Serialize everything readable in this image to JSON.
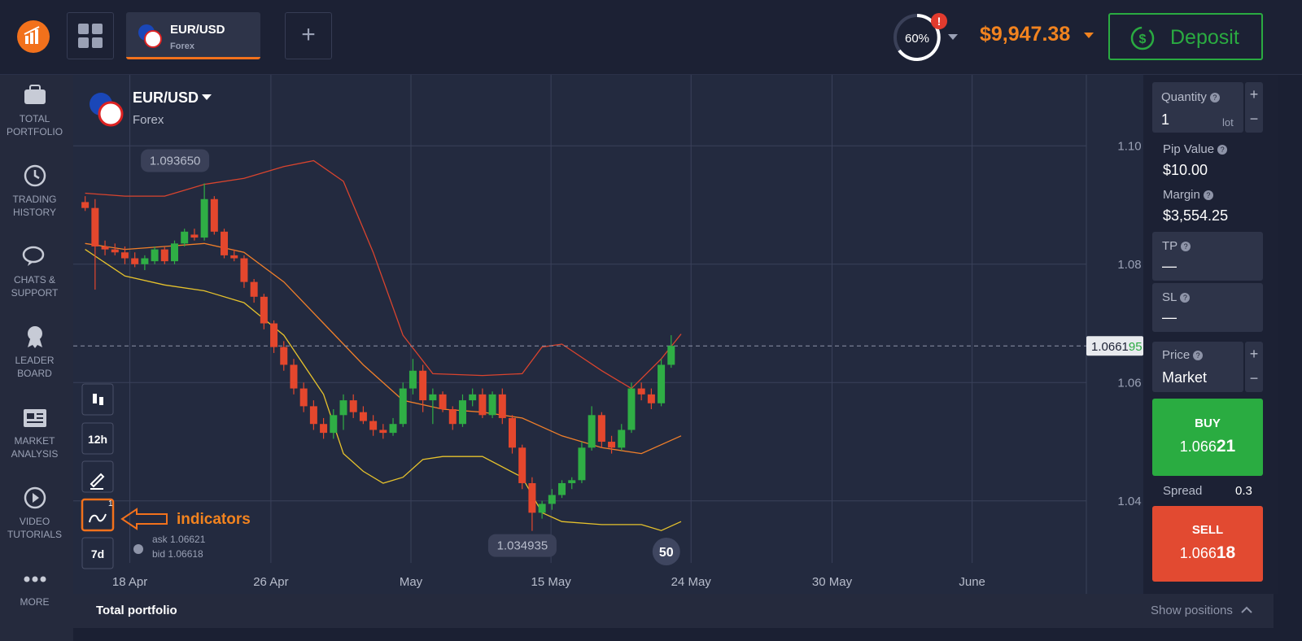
{
  "header": {
    "tab": {
      "symbol": "EUR/USD",
      "market": "Forex"
    },
    "progress": "60%",
    "balance": "$9,947.38",
    "deposit": "Deposit"
  },
  "sidebar": {
    "items": [
      "TOTAL PORTFOLIO",
      "TRADING HISTORY",
      "CHATS & SUPPORT",
      "LEADER BOARD",
      "MARKET ANALYSIS",
      "VIDEO TUTORIALS",
      "MORE"
    ]
  },
  "chart_data": {
    "type": "candlestick",
    "symbol": "EUR/USD",
    "market": "Forex",
    "open": [
      1.0905,
      1.0895,
      1.083,
      1.0825,
      1.082,
      1.081,
      1.08,
      1.0805,
      1.0825,
      1.0805,
      1.0835,
      1.085,
      1.0845,
      1.091,
      1.0855,
      1.0815,
      1.081,
      1.077,
      1.0745,
      1.07,
      1.066,
      1.063,
      1.059,
      1.056,
      1.053,
      1.0515,
      1.0545,
      1.057,
      1.055,
      1.0535,
      1.052,
      1.0515,
      1.053,
      1.059,
      1.062,
      1.057,
      1.058,
      1.0555,
      1.053,
      1.057,
      1.058,
      1.0545,
      1.058,
      1.054,
      1.049,
      1.043,
      1.038,
      1.0395,
      1.041,
      1.043,
      1.0435,
      1.049,
      1.0545,
      1.05,
      1.049,
      1.052,
      1.059,
      1.058,
      1.0565,
      1.063
    ],
    "high": [
      1.0915,
      1.091,
      1.084,
      1.0835,
      1.083,
      1.082,
      1.0815,
      1.083,
      1.083,
      1.084,
      1.086,
      1.086,
      1.09365,
      1.0915,
      1.086,
      1.0825,
      1.0815,
      1.0775,
      1.075,
      1.0705,
      1.067,
      1.064,
      1.06,
      1.057,
      1.054,
      1.0555,
      1.058,
      1.058,
      1.056,
      1.0545,
      1.053,
      1.054,
      1.06,
      1.064,
      1.063,
      1.059,
      1.0585,
      1.056,
      1.058,
      1.059,
      1.059,
      1.0585,
      1.059,
      1.0545,
      1.0495,
      1.044,
      1.04,
      1.042,
      1.0435,
      1.044,
      1.05,
      1.056,
      1.055,
      1.051,
      1.053,
      1.06,
      1.06,
      1.059,
      1.064,
      1.068
    ],
    "low": [
      1.089,
      1.0757,
      1.0815,
      1.0815,
      1.08,
      1.0795,
      1.079,
      1.08,
      1.08,
      1.08,
      1.083,
      1.084,
      1.084,
      1.085,
      1.081,
      1.0805,
      1.076,
      1.0735,
      1.069,
      1.065,
      1.062,
      1.058,
      1.055,
      1.052,
      1.0505,
      1.0505,
      1.052,
      1.054,
      1.053,
      1.051,
      1.0505,
      1.051,
      1.0525,
      1.058,
      1.055,
      1.053,
      1.055,
      1.052,
      1.0525,
      1.056,
      1.054,
      1.054,
      1.053,
      1.048,
      1.042,
      1.034935,
      1.037,
      1.0385,
      1.0405,
      1.042,
      1.043,
      1.0485,
      1.049,
      1.048,
      1.0485,
      1.0515,
      1.057,
      1.0555,
      1.056,
      1.0625
    ],
    "close": [
      1.0895,
      1.083,
      1.0825,
      1.082,
      1.081,
      1.08,
      1.081,
      1.0825,
      1.0805,
      1.0835,
      1.0855,
      1.0845,
      1.091,
      1.0855,
      1.0815,
      1.081,
      1.077,
      1.0745,
      1.07,
      1.066,
      1.063,
      1.059,
      1.056,
      1.053,
      1.0515,
      1.0545,
      1.057,
      1.055,
      1.0535,
      1.052,
      1.0515,
      1.053,
      1.059,
      1.062,
      1.057,
      1.058,
      1.0555,
      1.053,
      1.057,
      1.058,
      1.0545,
      1.058,
      1.054,
      1.049,
      1.043,
      1.038,
      1.0395,
      1.041,
      1.043,
      1.0435,
      1.049,
      1.0545,
      1.05,
      1.049,
      1.052,
      1.059,
      1.058,
      1.0565,
      1.063,
      1.0662
    ],
    "up_color": "#2fae45",
    "down_color": "#e4472d",
    "lines": [
      {
        "color": "#d9442e",
        "x": [
          0,
          4,
          8,
          12,
          16,
          20,
          23,
          26,
          29,
          32,
          35,
          40,
          44,
          46,
          48,
          52,
          55,
          58,
          60
        ],
        "values": [
          1.092,
          1.0915,
          1.0915,
          1.0935,
          1.0945,
          1.0965,
          1.0975,
          1.094,
          1.082,
          1.068,
          1.0615,
          1.0612,
          1.0615,
          1.066,
          1.0665,
          1.062,
          1.059,
          1.064,
          1.0682
        ]
      },
      {
        "color": "#f07f2a",
        "x": [
          0,
          4,
          8,
          12,
          16,
          20,
          24,
          28,
          32,
          36,
          40,
          44,
          48,
          52,
          56,
          60
        ],
        "values": [
          1.0835,
          1.0825,
          1.083,
          1.0835,
          1.082,
          1.077,
          1.07,
          1.063,
          1.057,
          1.0555,
          1.055,
          1.054,
          1.051,
          1.049,
          1.048,
          1.051
        ]
      },
      {
        "color": "#e6c22c",
        "x": [
          0,
          4,
          8,
          12,
          16,
          20,
          24,
          26,
          28,
          30,
          32,
          34,
          36,
          40,
          44,
          46,
          48,
          52,
          56,
          58,
          60
        ],
        "values": [
          1.0825,
          1.078,
          1.0765,
          1.0755,
          1.0735,
          1.068,
          1.058,
          1.048,
          1.045,
          1.043,
          1.044,
          1.047,
          1.0475,
          1.0475,
          1.044,
          1.038,
          1.0365,
          1.036,
          1.036,
          1.035,
          1.0365
        ]
      }
    ],
    "xlim": [
      -1.2,
      100.8
    ],
    "xticks": [
      {
        "value": 4.5,
        "label": "18 Apr"
      },
      {
        "value": 18.7,
        "label": "26 Apr"
      },
      {
        "value": 32.8,
        "label": "May"
      },
      {
        "value": 46.9,
        "label": "15 May"
      },
      {
        "value": 61,
        "label": "24 May"
      },
      {
        "value": 75.2,
        "label": "30 May"
      },
      {
        "value": 89.3,
        "label": "June"
      }
    ],
    "ylim": [
      1.0243,
      1.112
    ],
    "yticks": [
      {
        "value": 1.1,
        "label": "1.10"
      },
      1.08,
      1.06,
      1.04
    ],
    "grid": true,
    "high_label": {
      "value": 1.09365,
      "label": "1.093650"
    },
    "low_label": {
      "value": 1.034935,
      "label": "1.034935"
    },
    "current_price": {
      "value": 1.066195,
      "label": [
        "1.0661",
        "95"
      ]
    },
    "toolbar": [
      "12h",
      "7d"
    ],
    "indicator_count": "1",
    "annotation": "indicators",
    "ask": "ask 1.06621",
    "bid": "bid 1.06618",
    "counter": "50"
  },
  "trade_panel": {
    "quantity": {
      "label": "Quantity",
      "value": "1",
      "unit": "lot"
    },
    "pip_value": {
      "label": "Pip Value",
      "value": "$10.00"
    },
    "margin": {
      "label": "Margin",
      "value": "$3,554.25"
    },
    "tp": {
      "label": "TP",
      "value": "—"
    },
    "sl": {
      "label": "SL",
      "value": "—"
    },
    "price": {
      "label": "Price",
      "value": "Market"
    },
    "buy": {
      "label": "BUY",
      "price": [
        "1.066",
        "21"
      ]
    },
    "spread": {
      "label": "Spread",
      "value": "0.3"
    },
    "sell": {
      "label": "SELL",
      "price": [
        "1.066",
        "18"
      ]
    }
  },
  "footer": {
    "left": "Total portfolio",
    "right": "Show positions"
  }
}
